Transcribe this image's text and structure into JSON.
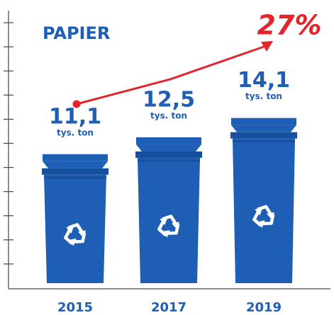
{
  "chart_data": {
    "type": "bar",
    "title": "PAPIER",
    "annotation": "27%",
    "categories": [
      "2015",
      "2017",
      "2019"
    ],
    "values": [
      11.1,
      12.5,
      14.1
    ],
    "value_labels": [
      "11,1",
      "12,5",
      "14,1"
    ],
    "unit": "tys. ton",
    "color": "#1e5fb5",
    "ylim": [
      0,
      23
    ],
    "yticks": [
      2,
      4,
      6,
      8,
      10,
      12,
      14,
      16,
      18,
      20,
      22
    ]
  }
}
